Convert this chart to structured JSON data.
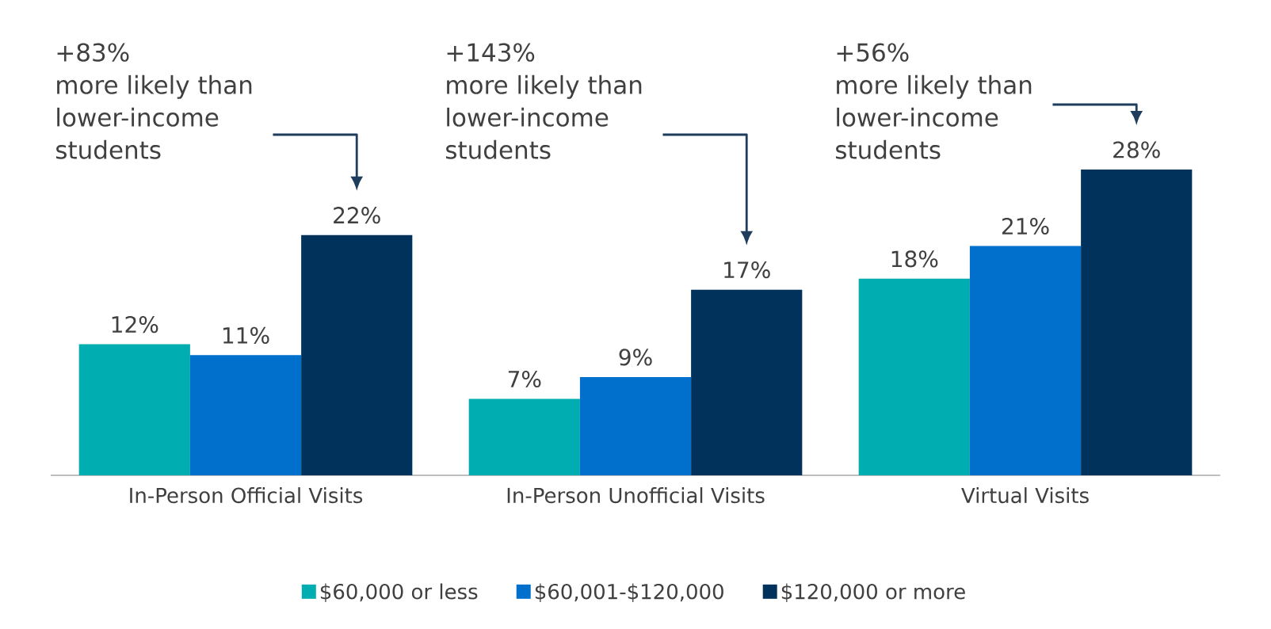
{
  "chart_data": {
    "type": "bar",
    "categories": [
      "In-Person Official Visits",
      "In-Person Unofficial Visits",
      "Virtual Visits"
    ],
    "series": [
      {
        "name": "$60,000 or less",
        "color": "#00adb0",
        "values": [
          12,
          7,
          18
        ],
        "value_labels": [
          "12%",
          "7%",
          "18%"
        ]
      },
      {
        "name": "$60,001-$120,000",
        "color": "#0070cc",
        "values": [
          11,
          9,
          21
        ],
        "value_labels": [
          "11%",
          "9%",
          "21%"
        ]
      },
      {
        "name": "$120,000 or more",
        "color": "#00325c",
        "values": [
          22,
          17,
          28
        ],
        "value_labels": [
          "22%",
          "17%",
          "28%"
        ]
      }
    ],
    "annotations": [
      "+83% more likely than lower-income students",
      "+143% more likely than lower-income students",
      "+56% more likely than lower-income students"
    ],
    "legend": "bottom",
    "grid": false
  }
}
